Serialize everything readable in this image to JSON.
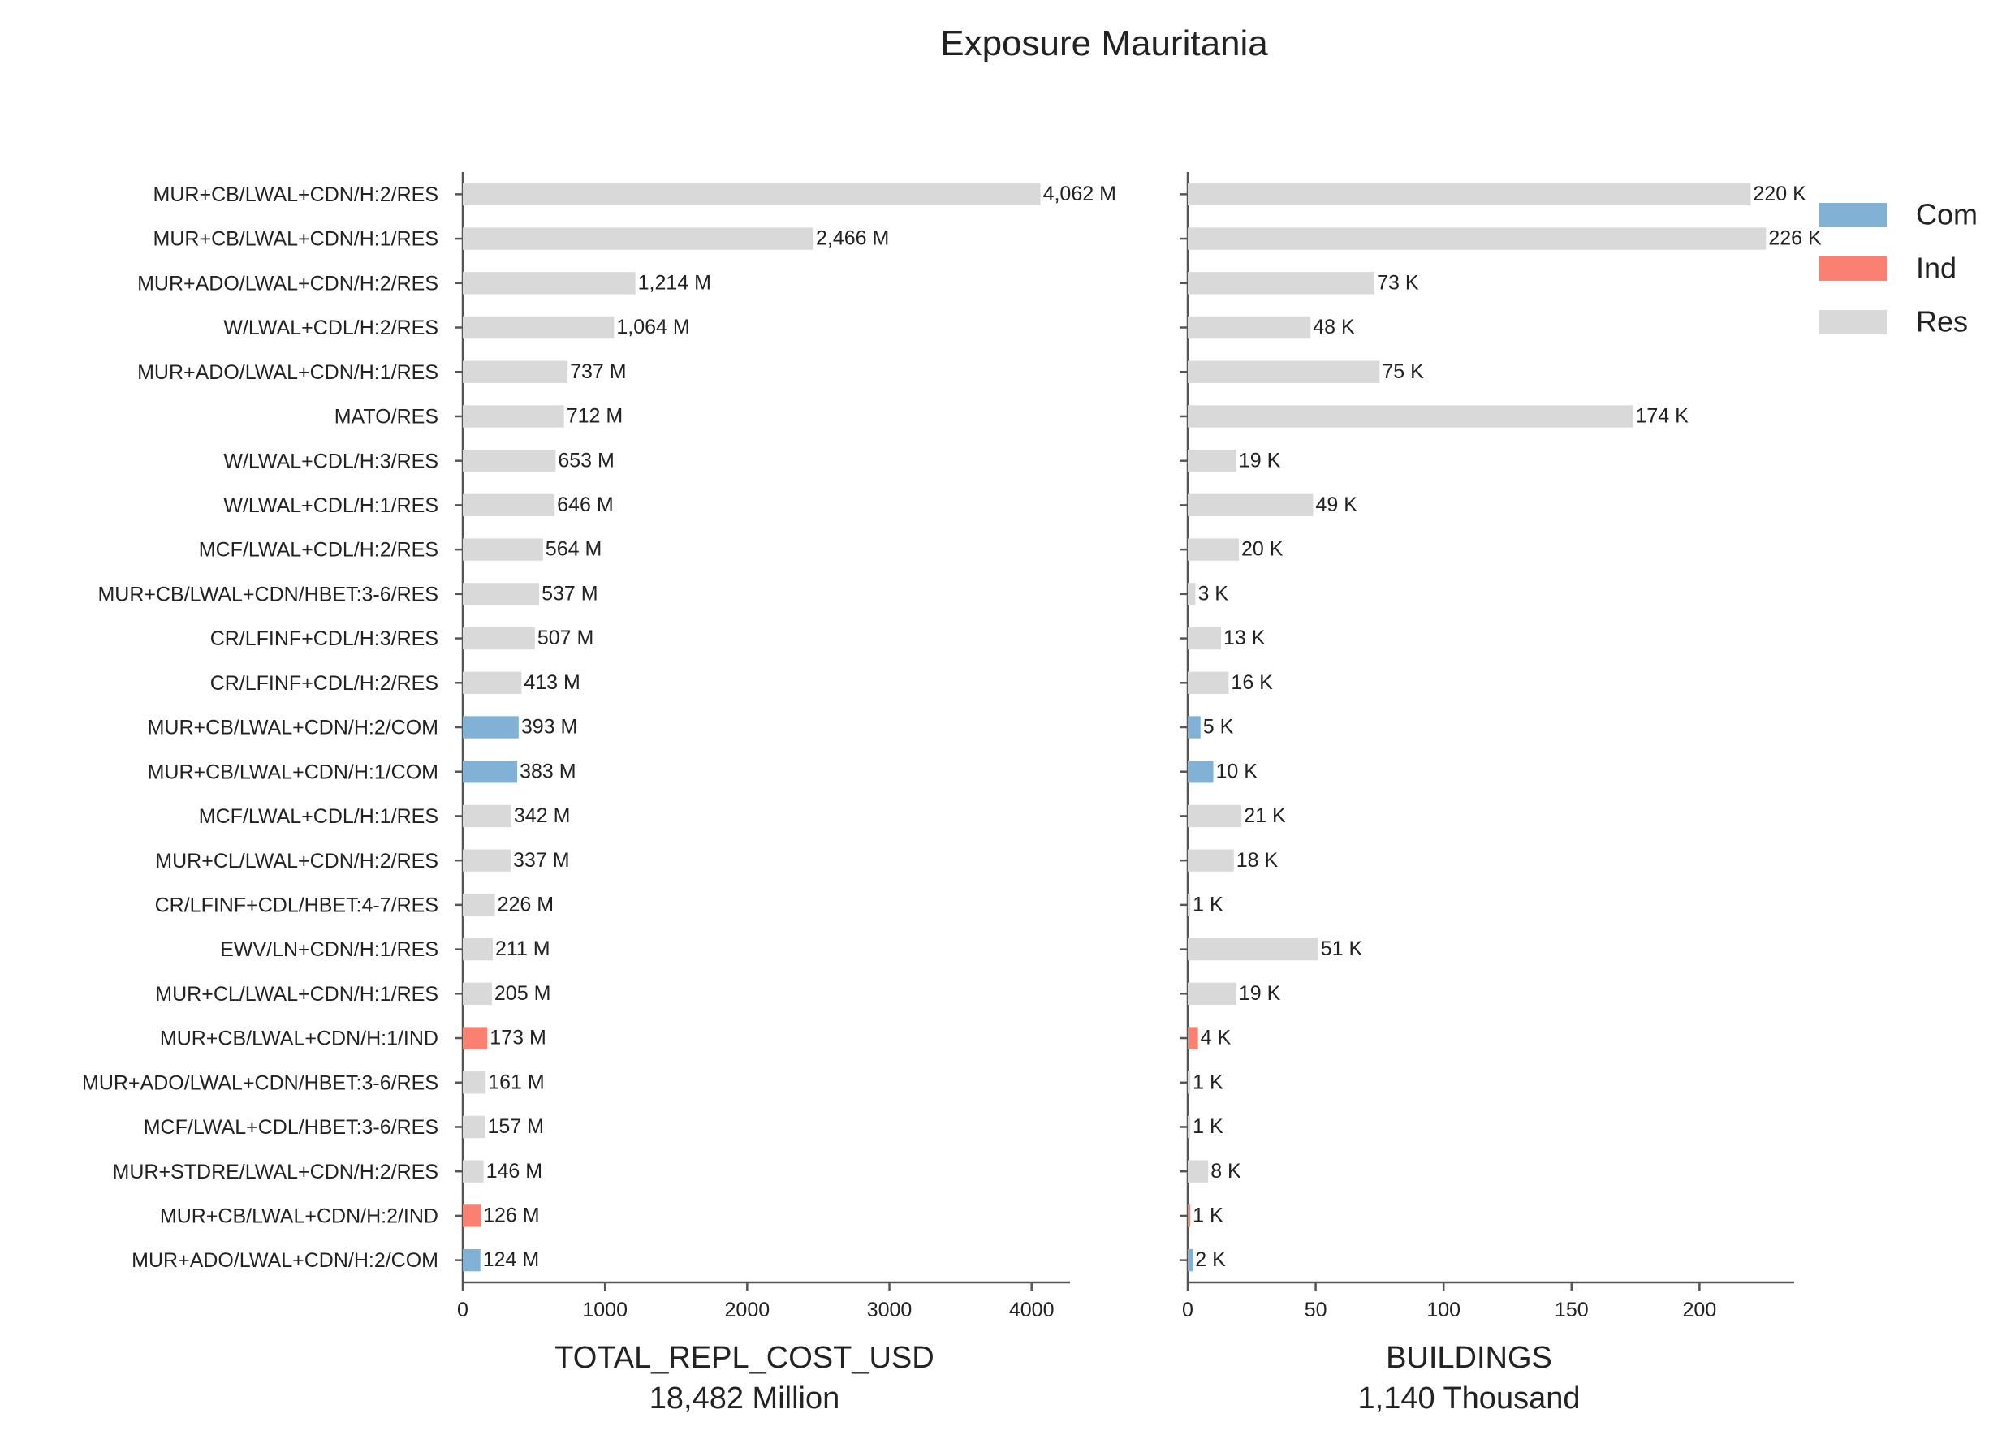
{
  "chart_data": {
    "type": "bar",
    "orientation": "horizontal",
    "title": "Exposure Mauritania",
    "colors": {
      "Com": "#82b1d6",
      "Ind": "#fa8072",
      "Res": "#d9d9d9"
    },
    "legend": {
      "placement": "top-right",
      "entries": [
        "Com",
        "Ind",
        "Res"
      ]
    },
    "categories": [
      "MUR+CB/LWAL+CDN/H:2/RES",
      "MUR+CB/LWAL+CDN/H:1/RES",
      "MUR+ADO/LWAL+CDN/H:2/RES",
      "W/LWAL+CDL/H:2/RES",
      "MUR+ADO/LWAL+CDN/H:1/RES",
      "MATO/RES",
      "W/LWAL+CDL/H:3/RES",
      "W/LWAL+CDL/H:1/RES",
      "MCF/LWAL+CDL/H:2/RES",
      "MUR+CB/LWAL+CDN/HBET:3-6/RES",
      "CR/LFINF+CDL/H:3/RES",
      "CR/LFINF+CDL/H:2/RES",
      "MUR+CB/LWAL+CDN/H:2/COM",
      "MUR+CB/LWAL+CDN/H:1/COM",
      "MCF/LWAL+CDL/H:1/RES",
      "MUR+CL/LWAL+CDN/H:2/RES",
      "CR/LFINF+CDL/HBET:4-7/RES",
      "EWV/LN+CDN/H:1/RES",
      "MUR+CL/LWAL+CDN/H:1/RES",
      "MUR+CB/LWAL+CDN/H:1/IND",
      "MUR+ADO/LWAL+CDN/HBET:3-6/RES",
      "MCF/LWAL+CDL/HBET:3-6/RES",
      "MUR+STDRE/LWAL+CDN/H:2/RES",
      "MUR+CB/LWAL+CDN/H:2/IND",
      "MUR+ADO/LWAL+CDN/H:2/COM"
    ],
    "occupancy": [
      "Res",
      "Res",
      "Res",
      "Res",
      "Res",
      "Res",
      "Res",
      "Res",
      "Res",
      "Res",
      "Res",
      "Res",
      "Com",
      "Com",
      "Res",
      "Res",
      "Res",
      "Res",
      "Res",
      "Ind",
      "Res",
      "Res",
      "Res",
      "Ind",
      "Com"
    ],
    "panels": [
      {
        "xlabel": "TOTAL_REPL_COST_USD",
        "xlabel_sub": "18,482 Million",
        "xlim": [
          0,
          4270
        ],
        "xticks": [
          0,
          1000,
          2000,
          3000,
          4000
        ],
        "values": [
          4062,
          2466,
          1214,
          1064,
          737,
          712,
          653,
          646,
          564,
          537,
          507,
          413,
          393,
          383,
          342,
          337,
          226,
          211,
          205,
          173,
          161,
          157,
          146,
          126,
          124
        ],
        "labels": [
          "4,062 M",
          "2,466 M",
          "1,214 M",
          "1,064 M",
          "737 M",
          "712 M",
          "653 M",
          "646 M",
          "564 M",
          "537 M",
          "507 M",
          "413 M",
          "393 M",
          "383 M",
          "342 M",
          "337 M",
          "226 M",
          "211 M",
          "205 M",
          "173 M",
          "161 M",
          "157 M",
          "146 M",
          "126 M",
          "124 M"
        ]
      },
      {
        "xlabel": "BUILDINGS",
        "xlabel_sub": "1,140 Thousand",
        "xlim": [
          0,
          237
        ],
        "xticks": [
          0,
          50,
          100,
          150,
          200
        ],
        "values": [
          220,
          226,
          73,
          48,
          75,
          174,
          19,
          49,
          20,
          3,
          13,
          16,
          5,
          10,
          21,
          18,
          1,
          51,
          19,
          4,
          1,
          1,
          8,
          1,
          2
        ],
        "labels": [
          "220 K",
          "226 K",
          "73 K",
          "48 K",
          "75 K",
          "174 K",
          "19 K",
          "49 K",
          "20 K",
          "3 K",
          "13 K",
          "16 K",
          "5 K",
          "10 K",
          "21 K",
          "18 K",
          "1 K",
          "51 K",
          "19 K",
          "4 K",
          "1 K",
          "1 K",
          "8 K",
          "1 K",
          "2 K"
        ]
      }
    ]
  }
}
